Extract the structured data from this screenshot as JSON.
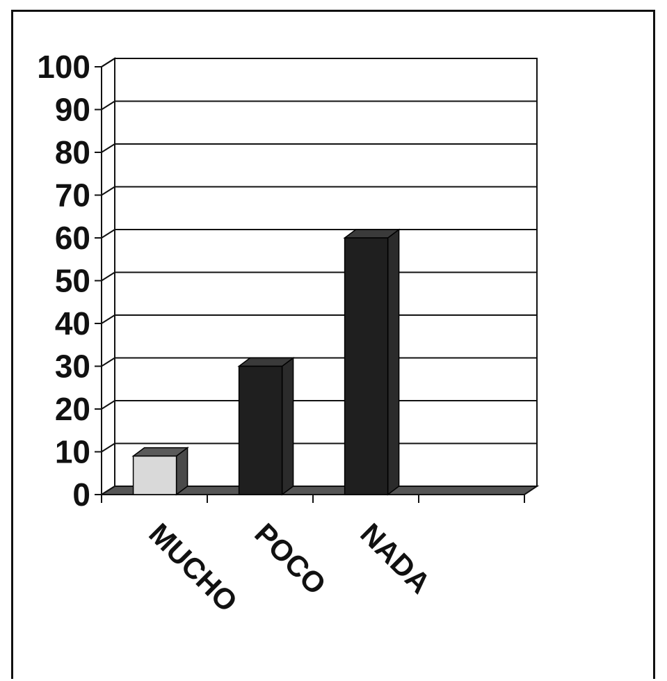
{
  "chart_data": {
    "type": "bar",
    "categories": [
      "MUCHO",
      "POCO",
      "NADA"
    ],
    "values": [
      9,
      30,
      60
    ],
    "ylim": [
      0,
      100
    ],
    "yticks": [
      0,
      10,
      20,
      30,
      40,
      50,
      60,
      70,
      80,
      90,
      100
    ],
    "grid": true,
    "legend": "none",
    "colors": {
      "MUCHO": "#d9d9d9",
      "POCO": "#1f1f1f",
      "NADA": "#1f1f1f",
      "floor": "#555555",
      "gridline": "#111111"
    }
  }
}
